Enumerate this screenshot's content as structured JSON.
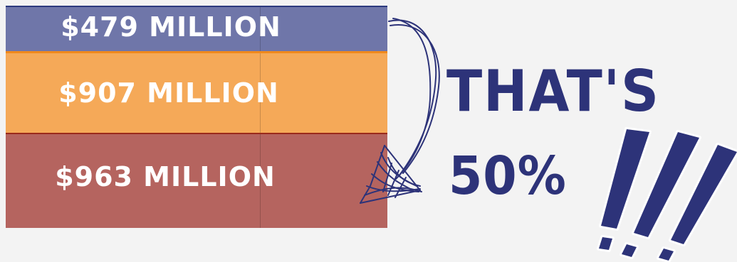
{
  "bars": [
    {
      "label": "$479 MILLION",
      "color": "#6f76a9"
    },
    {
      "label": "$907 MILLION",
      "color": "#f5a958"
    },
    {
      "label": "$963 MILLION",
      "color": "#b5645f"
    }
  ],
  "note": {
    "line1": "THAT'S",
    "line2": "50%",
    "color": "#2d3379"
  },
  "icons": [
    "curved-arrow-icon",
    "exclamation-marks-icon"
  ]
}
